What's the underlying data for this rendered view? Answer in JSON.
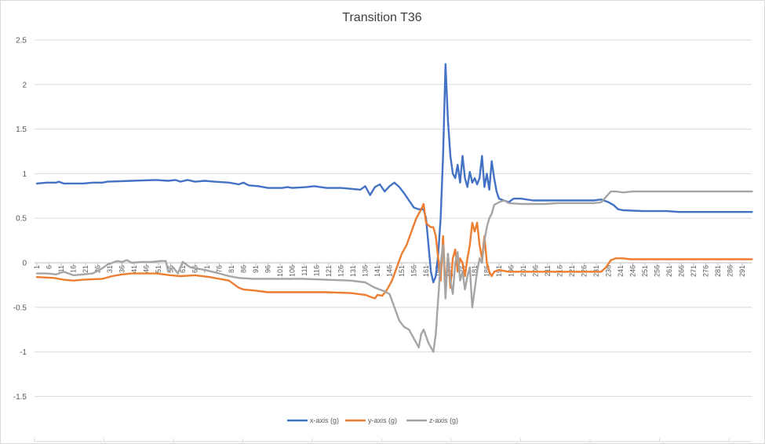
{
  "chart_data": {
    "type": "line",
    "title": "Transition T36",
    "xlabel": "",
    "ylabel": "",
    "ylim": [
      -1.5,
      2.5
    ],
    "xlim": [
      1,
      295
    ],
    "yticks": [
      "2.5",
      "2",
      "1.5",
      "1",
      "0.5",
      "0",
      "-0.5",
      "-1",
      "-1.5"
    ],
    "ytick_values": [
      2.5,
      2,
      1.5,
      1,
      0.5,
      0,
      -0.5,
      -1,
      -1.5
    ],
    "xticks": [
      "1",
      "6",
      "11",
      "16",
      "21",
      "26",
      "31",
      "36",
      "41",
      "46",
      "51",
      "56",
      "61",
      "66",
      "71",
      "76",
      "81",
      "86",
      "91",
      "96",
      "101",
      "106",
      "111",
      "116",
      "121",
      "126",
      "131",
      "136",
      "141",
      "146",
      "151",
      "156",
      "161",
      "166",
      "171",
      "176",
      "181",
      "186",
      "191",
      "196",
      "201",
      "206",
      "211",
      "216",
      "221",
      "226",
      "231",
      "236",
      "241",
      "246",
      "251",
      "256",
      "261",
      "266",
      "271",
      "276",
      "281",
      "286",
      "291"
    ],
    "grid": true,
    "legend_position": "bottom",
    "series": [
      {
        "name": "x-axis (g)",
        "color": "#4472C4",
        "points": [
          [
            1,
            0.89
          ],
          [
            5,
            0.9
          ],
          [
            9,
            0.9
          ],
          [
            10,
            0.91
          ],
          [
            12,
            0.89
          ],
          [
            20,
            0.89
          ],
          [
            24,
            0.9
          ],
          [
            28,
            0.9
          ],
          [
            30,
            0.91
          ],
          [
            40,
            0.92
          ],
          [
            50,
            0.93
          ],
          [
            55,
            0.92
          ],
          [
            58,
            0.93
          ],
          [
            60,
            0.91
          ],
          [
            63,
            0.93
          ],
          [
            66,
            0.91
          ],
          [
            70,
            0.92
          ],
          [
            74,
            0.91
          ],
          [
            80,
            0.9
          ],
          [
            84,
            0.88
          ],
          [
            86,
            0.9
          ],
          [
            88,
            0.87
          ],
          [
            92,
            0.86
          ],
          [
            96,
            0.84
          ],
          [
            102,
            0.84
          ],
          [
            104,
            0.85
          ],
          [
            106,
            0.84
          ],
          [
            112,
            0.85
          ],
          [
            115,
            0.86
          ],
          [
            120,
            0.84
          ],
          [
            126,
            0.84
          ],
          [
            130,
            0.83
          ],
          [
            134,
            0.82
          ],
          [
            136,
            0.86
          ],
          [
            138,
            0.76
          ],
          [
            140,
            0.85
          ],
          [
            142,
            0.88
          ],
          [
            144,
            0.8
          ],
          [
            146,
            0.86
          ],
          [
            148,
            0.9
          ],
          [
            150,
            0.85
          ],
          [
            152,
            0.78
          ],
          [
            154,
            0.7
          ],
          [
            156,
            0.62
          ],
          [
            158,
            0.6
          ],
          [
            160,
            0.6
          ],
          [
            161,
            0.5
          ],
          [
            162,
            0.2
          ],
          [
            163,
            -0.1
          ],
          [
            164,
            -0.22
          ],
          [
            165,
            -0.15
          ],
          [
            166,
            0.1
          ],
          [
            167,
            0.5
          ],
          [
            168,
            1.2
          ],
          [
            169,
            2.23
          ],
          [
            170,
            1.6
          ],
          [
            171,
            1.2
          ],
          [
            172,
            1.0
          ],
          [
            173,
            0.95
          ],
          [
            174,
            1.1
          ],
          [
            175,
            0.9
          ],
          [
            176,
            1.2
          ],
          [
            177,
            0.95
          ],
          [
            178,
            0.85
          ],
          [
            179,
            1.02
          ],
          [
            180,
            0.9
          ],
          [
            181,
            0.95
          ],
          [
            182,
            0.88
          ],
          [
            183,
            0.95
          ],
          [
            184,
            1.2
          ],
          [
            185,
            0.85
          ],
          [
            186,
            1.0
          ],
          [
            187,
            0.82
          ],
          [
            188,
            1.14
          ],
          [
            189,
            0.95
          ],
          [
            190,
            0.8
          ],
          [
            191,
            0.72
          ],
          [
            193,
            0.7
          ],
          [
            195,
            0.68
          ],
          [
            197,
            0.72
          ],
          [
            200,
            0.72
          ],
          [
            205,
            0.7
          ],
          [
            210,
            0.7
          ],
          [
            215,
            0.7
          ],
          [
            220,
            0.7
          ],
          [
            225,
            0.7
          ],
          [
            230,
            0.7
          ],
          [
            233,
            0.71
          ],
          [
            236,
            0.68
          ],
          [
            238,
            0.65
          ],
          [
            240,
            0.6
          ],
          [
            242,
            0.59
          ],
          [
            250,
            0.58
          ],
          [
            260,
            0.58
          ],
          [
            265,
            0.57
          ],
          [
            270,
            0.57
          ],
          [
            280,
            0.57
          ],
          [
            295,
            0.57
          ]
        ]
      },
      {
        "name": "y-axis (g)",
        "color": "#ED7D31",
        "points": [
          [
            1,
            -0.16
          ],
          [
            8,
            -0.17
          ],
          [
            12,
            -0.19
          ],
          [
            16,
            -0.2
          ],
          [
            20,
            -0.19
          ],
          [
            28,
            -0.18
          ],
          [
            32,
            -0.15
          ],
          [
            36,
            -0.13
          ],
          [
            40,
            -0.12
          ],
          [
            50,
            -0.12
          ],
          [
            56,
            -0.14
          ],
          [
            60,
            -0.15
          ],
          [
            66,
            -0.14
          ],
          [
            72,
            -0.16
          ],
          [
            76,
            -0.18
          ],
          [
            80,
            -0.2
          ],
          [
            84,
            -0.28
          ],
          [
            86,
            -0.3
          ],
          [
            90,
            -0.31
          ],
          [
            96,
            -0.33
          ],
          [
            110,
            -0.33
          ],
          [
            120,
            -0.33
          ],
          [
            130,
            -0.34
          ],
          [
            136,
            -0.36
          ],
          [
            138,
            -0.38
          ],
          [
            140,
            -0.4
          ],
          [
            141,
            -0.36
          ],
          [
            143,
            -0.37
          ],
          [
            145,
            -0.3
          ],
          [
            147,
            -0.2
          ],
          [
            149,
            -0.05
          ],
          [
            151,
            0.1
          ],
          [
            153,
            0.2
          ],
          [
            155,
            0.35
          ],
          [
            157,
            0.5
          ],
          [
            158,
            0.55
          ],
          [
            159,
            0.6
          ],
          [
            160,
            0.66
          ],
          [
            161,
            0.45
          ],
          [
            162,
            0.42
          ],
          [
            163,
            0.4
          ],
          [
            164,
            0.4
          ],
          [
            165,
            0.3
          ],
          [
            166,
            0.05
          ],
          [
            167,
            -0.2
          ],
          [
            168,
            0.3
          ],
          [
            169,
            -0.3
          ],
          [
            170,
            0.1
          ],
          [
            171,
            -0.28
          ],
          [
            172,
            0.05
          ],
          [
            173,
            0.15
          ],
          [
            174,
            -0.1
          ],
          [
            175,
            0.05
          ],
          [
            176,
            0.0
          ],
          [
            177,
            -0.15
          ],
          [
            178,
            0.05
          ],
          [
            179,
            0.2
          ],
          [
            180,
            0.45
          ],
          [
            181,
            0.35
          ],
          [
            182,
            0.45
          ],
          [
            183,
            0.2
          ],
          [
            184,
            0.05
          ],
          [
            185,
            0.3
          ],
          [
            186,
            0.0
          ],
          [
            187,
            -0.1
          ],
          [
            188,
            -0.15
          ],
          [
            189,
            -0.1
          ],
          [
            191,
            -0.08
          ],
          [
            195,
            -0.1
          ],
          [
            200,
            -0.1
          ],
          [
            210,
            -0.1
          ],
          [
            220,
            -0.1
          ],
          [
            230,
            -0.1
          ],
          [
            233,
            -0.1
          ],
          [
            235,
            -0.05
          ],
          [
            237,
            0.03
          ],
          [
            239,
            0.05
          ],
          [
            242,
            0.05
          ],
          [
            245,
            0.04
          ],
          [
            260,
            0.04
          ],
          [
            270,
            0.04
          ],
          [
            295,
            0.04
          ]
        ]
      },
      {
        "name": "z-axis (g)",
        "color": "#A5A5A5",
        "points": [
          [
            1,
            -0.12
          ],
          [
            5,
            -0.12
          ],
          [
            9,
            -0.13
          ],
          [
            12,
            -0.1
          ],
          [
            16,
            -0.14
          ],
          [
            20,
            -0.13
          ],
          [
            24,
            -0.12
          ],
          [
            28,
            -0.06
          ],
          [
            30,
            -0.02
          ],
          [
            32,
            0.0
          ],
          [
            34,
            0.02
          ],
          [
            36,
            0.01
          ],
          [
            38,
            0.03
          ],
          [
            40,
            0.0
          ],
          [
            44,
            0.01
          ],
          [
            48,
            0.01
          ],
          [
            52,
            0.02
          ],
          [
            54,
            0.02
          ],
          [
            55,
            -0.1
          ],
          [
            57,
            -0.05
          ],
          [
            59,
            -0.12
          ],
          [
            60,
            -0.05
          ],
          [
            61,
            0.01
          ],
          [
            64,
            -0.05
          ],
          [
            70,
            -0.08
          ],
          [
            76,
            -0.12
          ],
          [
            80,
            -0.15
          ],
          [
            84,
            -0.17
          ],
          [
            90,
            -0.18
          ],
          [
            96,
            -0.18
          ],
          [
            110,
            -0.18
          ],
          [
            120,
            -0.19
          ],
          [
            130,
            -0.2
          ],
          [
            136,
            -0.22
          ],
          [
            138,
            -0.25
          ],
          [
            140,
            -0.28
          ],
          [
            142,
            -0.3
          ],
          [
            144,
            -0.32
          ],
          [
            146,
            -0.35
          ],
          [
            148,
            -0.5
          ],
          [
            150,
            -0.65
          ],
          [
            152,
            -0.72
          ],
          [
            154,
            -0.75
          ],
          [
            156,
            -0.85
          ],
          [
            158,
            -0.95
          ],
          [
            159,
            -0.8
          ],
          [
            160,
            -0.75
          ],
          [
            162,
            -0.9
          ],
          [
            164,
            -1.0
          ],
          [
            165,
            -0.8
          ],
          [
            166,
            -0.4
          ],
          [
            167,
            0.0
          ],
          [
            168,
            0.2
          ],
          [
            169,
            -0.4
          ],
          [
            170,
            0.1
          ],
          [
            171,
            -0.2
          ],
          [
            172,
            -0.35
          ],
          [
            173,
            0.0
          ],
          [
            174,
            0.12
          ],
          [
            175,
            -0.2
          ],
          [
            176,
            -0.1
          ],
          [
            177,
            -0.3
          ],
          [
            178,
            -0.15
          ],
          [
            179,
            -0.05
          ],
          [
            180,
            -0.5
          ],
          [
            181,
            -0.3
          ],
          [
            182,
            -0.1
          ],
          [
            183,
            0.05
          ],
          [
            184,
            0.0
          ],
          [
            185,
            0.25
          ],
          [
            186,
            0.4
          ],
          [
            187,
            0.5
          ],
          [
            188,
            0.55
          ],
          [
            189,
            0.65
          ],
          [
            191,
            0.68
          ],
          [
            193,
            0.7
          ],
          [
            195,
            0.67
          ],
          [
            200,
            0.66
          ],
          [
            205,
            0.66
          ],
          [
            210,
            0.66
          ],
          [
            215,
            0.67
          ],
          [
            220,
            0.67
          ],
          [
            225,
            0.67
          ],
          [
            230,
            0.67
          ],
          [
            233,
            0.68
          ],
          [
            235,
            0.74
          ],
          [
            237,
            0.8
          ],
          [
            239,
            0.8
          ],
          [
            242,
            0.79
          ],
          [
            246,
            0.8
          ],
          [
            260,
            0.8
          ],
          [
            270,
            0.8
          ],
          [
            295,
            0.8
          ]
        ]
      }
    ]
  }
}
